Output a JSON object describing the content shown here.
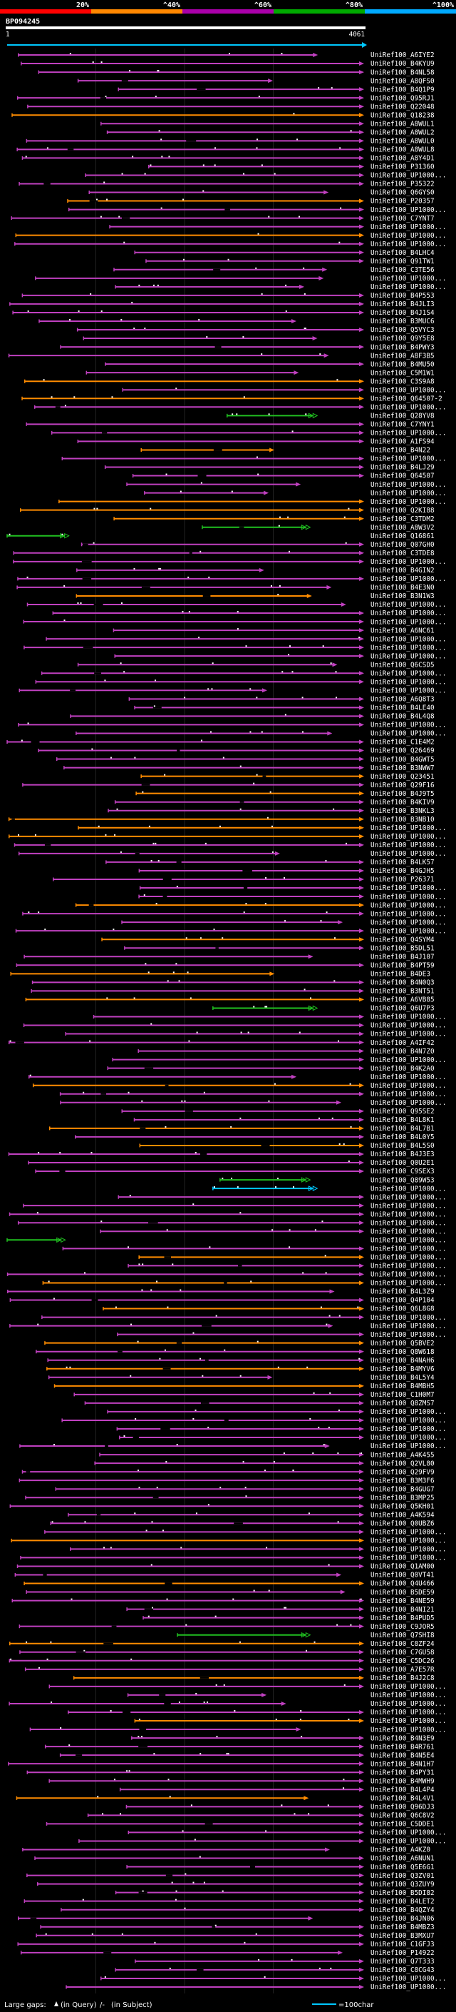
{
  "chart_data": {
    "type": "alignment-overview",
    "query_name": "BP094245",
    "query_length": 4061,
    "axis": {
      "start_label": "1",
      "end_label": "4061"
    },
    "identity_legend": [
      {
        "label": "20%",
        "color": "#ff0000"
      },
      {
        "label": "^40%",
        "color": "#ff8800"
      },
      {
        "label": "^60%",
        "color": "#aa00aa"
      },
      {
        "label": "^80%",
        "color": "#00aa00"
      },
      {
        "label": "^100%",
        "color": "#00aaff"
      }
    ],
    "identity_colors": {
      "orange": "#ff8c00",
      "purple": "#c040c0",
      "green": "#20c020",
      "cyan": "#00c8ff"
    },
    "hits": [
      "UniRef100_A6IYE2",
      "UniRef100_B4KYU9",
      "UniRef100_B4NL58",
      "UniRef100_A8QFS0",
      "UniRef100_B4Q1P9",
      "UniRef100_Q95RJ1",
      "UniRef100_Q22048",
      "UniRef100_Q18238",
      "UniRef100_A8WUL1",
      "UniRef100_A8WUL2",
      "UniRef100_A8WUL0",
      "UniRef100_A8WUL8",
      "UniRef100_A8Y4D1",
      "UniRef100_P31360",
      "UniRef100_UP1000...",
      "UniRef100_P35322",
      "UniRef100_Q6GYS0",
      "UniRef100_P20357",
      "UniRef100_UP1000...",
      "UniRef100_C7YNT7",
      "UniRef100_UP1000...",
      "UniRef100_UP1000...",
      "UniRef100_UP1000...",
      "UniRef100_B4LHC4",
      "UniRef100_Q91TW1",
      "UniRef100_C3TE56",
      "UniRef100_UP1000...",
      "UniRef100_UP1000...",
      "UniRef100_B4P553",
      "UniRef100_B4JLI3",
      "UniRef100_B4J1S4",
      "UniRef100_B3MUC6",
      "UniRef100_Q5VYC3",
      "UniRef100_Q9Y5E8",
      "UniRef100_B4PWY3",
      "UniRef100_A8F3B5",
      "UniRef100_B4MU50",
      "UniRef100_C5M1W1",
      "UniRef100_C3S9A8",
      "UniRef100_UP1000...",
      "UniRef100_Q64507-2",
      "UniRef100_UP1000...",
      "UniRef100_Q28YV8",
      "UniRef100_C7YNY1",
      "UniRef100_UP1000...",
      "UniRef100_A1FS94",
      "UniRef100_B4N22",
      "UniRef100_UP1000...",
      "UniRef100_B4LJ29",
      "UniRef100_Q64507",
      "UniRef100_UP1000...",
      "UniRef100_UP1000...",
      "UniRef100_UP1000...",
      "UniRef100_Q2KI88",
      "UniRef100_C3TDM2",
      "UniRef100_A8W3V2",
      "UniRef100_Q16861",
      "UniRef100_Q07GH0",
      "UniRef100_C3TDE8",
      "UniRef100_UP1000...",
      "UniRef100_B4GIN2",
      "UniRef100_UP1000...",
      "UniRef100_B4E3N0",
      "UniRef100_B3N1W3",
      "UniRef100_UP1000...",
      "UniRef100_UP1000...",
      "UniRef100_UP1000...",
      "UniRef100_A6NC61",
      "UniRef100_UP1000...",
      "UniRef100_UP1000...",
      "UniRef100_UP1000...",
      "UniRef100_Q6CSD5",
      "UniRef100_UP1000...",
      "UniRef100_UP1000...",
      "UniRef100_UP1000...",
      "UniRef100_A6Q8T3",
      "UniRef100_B4LE40",
      "UniRef100_B4L4Q8",
      "UniRef100_UP1000...",
      "UniRef100_UP1000...",
      "UniRef100_C1E4M2",
      "UniRef100_Q26469",
      "UniRef100_B4GWT5",
      "UniRef100_B3NWW7",
      "UniRef100_Q23451",
      "UniRef100_Q29F16",
      "UniRef100_B4J9T5",
      "UniRef100_B4KIV9",
      "UniRef100_B3NKL3",
      "UniRef100_B3NB10",
      "UniRef100_UP1000...",
      "UniRef100_UP1000...",
      "UniRef100_UP1000...",
      "UniRef100_UP1000...",
      "UniRef100_B4LK57",
      "UniRef100_B4GJH5",
      "UniRef100_P26371",
      "UniRef100_UP1000...",
      "UniRef100_UP1000...",
      "UniRef100_UP1000...",
      "UniRef100_UP1000...",
      "UniRef100_UP1000...",
      "UniRef100_UP1000...",
      "UniRef100_Q4SYM4",
      "UniRef100_B5DL51",
      "UniRef100_B4J107",
      "UniRef100_B4PT59",
      "UniRef100_B4DE3",
      "UniRef100_B4N0Q3",
      "UniRef100_B3NT51",
      "UniRef100_A6VB85",
      "UniRef100_Q6U7P3",
      "UniRef100_UP1000...",
      "UniRef100_UP1000...",
      "UniRef100_UP1000...",
      "UniRef100_A4IF42",
      "UniRef100_B4N7Z0",
      "UniRef100_UP1000...",
      "UniRef100_B4K2A0",
      "UniRef100_UP1000...",
      "UniRef100_UP1000...",
      "UniRef100_UP1000...",
      "UniRef100_UP1000...",
      "UniRef100_Q95SE2",
      "UniRef100_B4L8K1",
      "UniRef100_B4L7B1",
      "UniRef100_B4L0Y5",
      "UniRef100_B4L5S0",
      "UniRef100_B4J3E3",
      "UniRef100_Q0U2E1",
      "UniRef100_C9SEX3",
      "UniRef100_Q89W53",
      "UniRef100_UP1000...",
      "UniRef100_UP1000...",
      "UniRef100_UP1000...",
      "UniRef100_UP1000...",
      "UniRef100_UP1000...",
      "UniRef100_UP1000...",
      "UniRef100_UP1000...",
      "UniRef100_UP1000...",
      "UniRef100_UP1000...",
      "UniRef100_UP1000...",
      "UniRef100_UP1000...",
      "UniRef100_UP1000...",
      "UniRef100_B4L3Z9",
      "UniRef100_Q4P104",
      "UniRef100_Q6L8G8",
      "UniRef100_UP1000...",
      "UniRef100_UP1000...",
      "UniRef100_UP1000...",
      "UniRef100_Q5BVE2",
      "UniRef100_Q8W618",
      "UniRef100_B4NAH6",
      "UniRef100_B4MYV6",
      "UniRef100_B4L5Y4",
      "UniRef100_B4MBH5",
      "UniRef100_C1H0M7",
      "UniRef100_Q8ZMS7",
      "UniRef100_UP1000...",
      "UniRef100_UP1000...",
      "UniRef100_UP1000...",
      "UniRef100_UP1000...",
      "UniRef100_UP1000...",
      "UniRef100_A4K455",
      "UniRef100_Q2VL80",
      "UniRef100_Q29FV9",
      "UniRef100_B3M3F6",
      "UniRef100_B4GUG7",
      "UniRef100_B3MP25",
      "UniRef100_Q5KH01",
      "UniRef100_A4K594",
      "UniRef100_Q0UBZ6",
      "UniRef100_UP1000...",
      "UniRef100_UP1000...",
      "UniRef100_UP1000...",
      "UniRef100_UP1000...",
      "UniRef100_Q1AM00",
      "UniRef100_Q0VT41",
      "UniRef100_Q4U466",
      "UniRef100_B5DE59",
      "UniRef100_B4NE59",
      "UniRef100_B4NI21",
      "UniRef100_B4PUD5",
      "UniRef100_C9JOR5",
      "UniRef100_Q7SHI8",
      "UniRef100_C8ZF24",
      "UniRef100_C7GU58",
      "UniRef100_C5DC26",
      "UniRef100_A7E57R",
      "UniRef100_B4J2C8",
      "UniRef100_UP1000...",
      "UniRef100_UP1000...",
      "UniRef100_UP1000...",
      "UniRef100_UP1000...",
      "UniRef100_UP1000...",
      "UniRef100_UP1000...",
      "UniRef100_B4N3E9",
      "UniRef100_B4R761",
      "UniRef100_B4N5E4",
      "UniRef100_B4N1H7",
      "UniRef100_B4PY31",
      "UniRef100_B4MWH9",
      "UniRef100_B4L4P4",
      "UniRef100_B4L4V1",
      "UniRef100_Q96DJ3",
      "UniRef100_Q6C8V2",
      "UniRef100_C5DDE1",
      "UniRef100_UP1000...",
      "UniRef100_UP1000...",
      "UniRef100_A4KZ0",
      "UniRef100_A6NUN1",
      "UniRef100_Q5E6G1",
      "UniRef100_Q3ZV01",
      "UniRef100_Q3ZUY9",
      "UniRef100_B5DI82",
      "UniRef100_B4LET2",
      "UniRef100_B4QZY4",
      "UniRef100_B4JN06",
      "UniRef100_B4MBZ3",
      "UniRef100_B3MXU7",
      "UniRef100_C1GFJ3",
      "UniRef100_P14922",
      "UniRef100_Q7T333",
      "UniRef100_C8CG43",
      "UniRef100_UP1000...",
      "UniRef100_UP1000..."
    ],
    "footer": {
      "gaps_text": "Large gaps:",
      "gaps_in_query": "(in Query)",
      "gaps_separator": "/-",
      "gaps_in_subject": "(in Subject)",
      "scale_label": "=100char"
    }
  }
}
